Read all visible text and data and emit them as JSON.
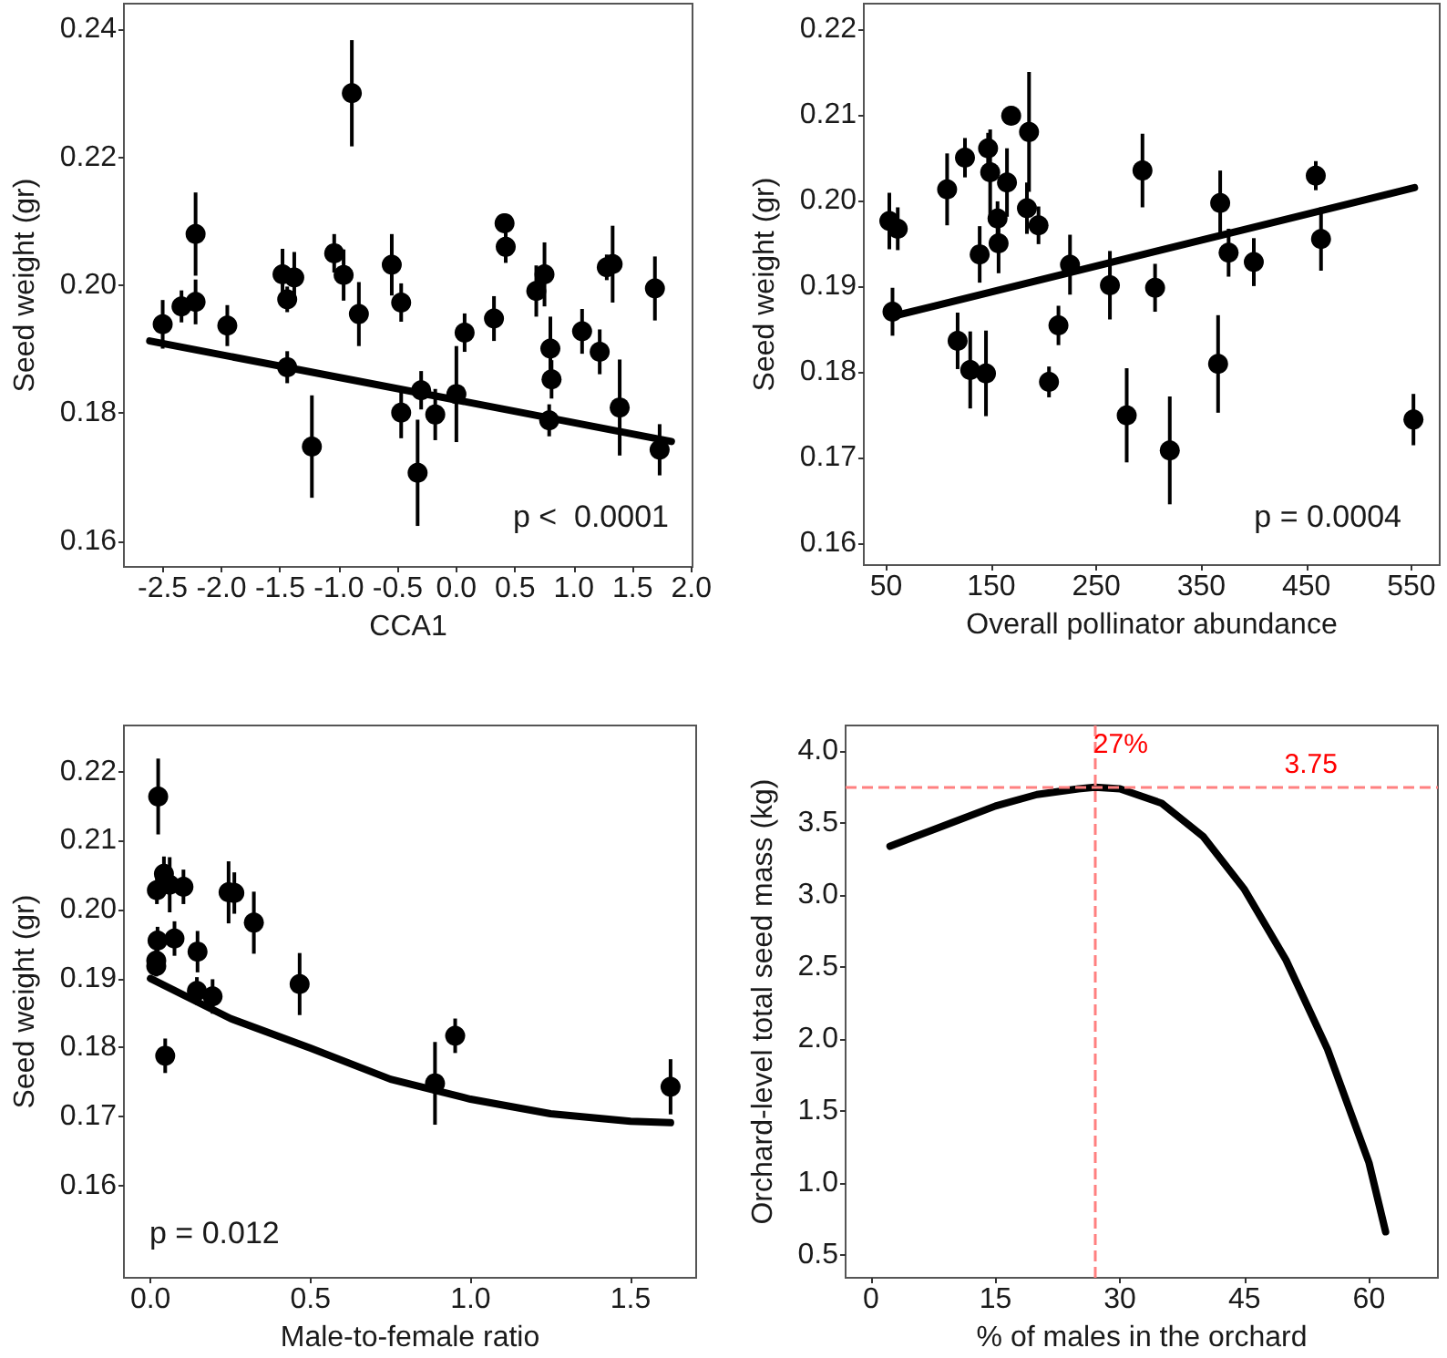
{
  "chart_data": [
    {
      "type": "scatter",
      "xlabel": "CCA1",
      "ylabel": "Seed weight (gr)",
      "xlim": [
        -2.83,
        2.01
      ],
      "ylim": [
        0.156,
        0.244
      ],
      "marker": "circle",
      "grid": false,
      "xticks": [
        -2.5,
        {
          "value": -2,
          "label": "-2.0"
        },
        -1.5,
        {
          "value": -1,
          "label": "-1.0"
        },
        -0.5,
        {
          "value": 0,
          "label": "0.0"
        },
        0.5,
        {
          "value": 1,
          "label": "1.0"
        },
        1.5,
        {
          "value": 2,
          "label": "2.0"
        }
      ],
      "yticks": [
        0.16,
        0.18,
        {
          "value": 0.2,
          "label": "0.20"
        },
        0.22,
        0.24
      ],
      "annotations": [
        "p <  0.0001"
      ],
      "series": [
        {
          "color": "#000000",
          "x": [
            -2.5,
            -2.34,
            -2.22,
            -2.22,
            -1.95,
            -1.48,
            -1.44,
            -1.38,
            -1.44,
            -1.23,
            -1.04,
            -0.96,
            -0.89,
            -0.83,
            -0.55,
            -0.47,
            -0.47,
            -0.3,
            -0.33,
            -0.18,
            0.0,
            0.07,
            0.32,
            0.41,
            0.42,
            0.68,
            0.75,
            0.8,
            0.81,
            0.79,
            1.07,
            1.22,
            1.28,
            1.33,
            1.39,
            1.69,
            1.73
          ],
          "values": [
            0.1939,
            0.1967,
            0.208,
            0.1974,
            0.1937,
            0.2017,
            0.1978,
            0.2012,
            0.1872,
            0.1748,
            0.205,
            0.2016,
            0.23,
            0.1955,
            0.2032,
            0.1973,
            0.1801,
            0.1836,
            0.1707,
            0.1798,
            0.183,
            0.1926,
            0.1948,
            0.2097,
            0.206,
            0.1991,
            0.2017,
            0.1901,
            0.1853,
            0.1789,
            0.1928,
            0.1896,
            0.2028,
            0.2033,
            0.1809,
            0.1995,
            0.1743
          ],
          "errors": [
            0.0038,
            0.0025,
            0.0065,
            0.0035,
            0.0032,
            0.004,
            0.002,
            0.004,
            0.0025,
            0.008,
            0.003,
            0.004,
            0.0083,
            0.005,
            0.0048,
            0.003,
            0.004,
            0.003,
            0.0083,
            0.004,
            0.0075,
            0.003,
            0.0035,
            0.0015,
            0.0025,
            0.004,
            0.005,
            0.005,
            0.003,
            0.0025,
            0.0035,
            0.0035,
            0.002,
            0.006,
            0.0075,
            0.005,
            0.004
          ]
        },
        {
          "type": "line",
          "marker": "none",
          "color": "#000000",
          "x": [
            -2.61,
            1.83
          ],
          "values": [
            0.1913,
            0.1756
          ]
        }
      ]
    },
    {
      "type": "scatter",
      "xlabel": "Overall pollinator abundance",
      "ylabel": "Seed weight (gr)",
      "xlim": [
        28.7,
        577
      ],
      "ylim": [
        0.1574,
        0.223
      ],
      "marker": "circle",
      "grid": false,
      "xticks": [
        50,
        150,
        250,
        350,
        450,
        550
      ],
      "yticks": [
        0.16,
        0.17,
        0.18,
        0.19,
        {
          "value": 0.2,
          "label": "0.20"
        },
        0.21,
        0.22
      ],
      "annotations": [
        "p = 0.0004"
      ],
      "series": [
        {
          "color": "#000000",
          "x": [
            53,
            61,
            56,
            108,
            118,
            125,
            130,
            139,
            145,
            147,
            149,
            156,
            157,
            165,
            169,
            184,
            186,
            195,
            205,
            214,
            225,
            263,
            279,
            294,
            306,
            320,
            366,
            368,
            376,
            400,
            459,
            464,
            552
          ],
          "values": [
            0.1976,
            0.1967,
            0.187,
            0.2013,
            0.1836,
            0.205,
            0.1802,
            0.1937,
            0.1798,
            0.2061,
            0.2033,
            0.1979,
            0.195,
            0.2021,
            0.2099,
            0.1991,
            0.208,
            0.1971,
            0.1788,
            0.1854,
            0.1925,
            0.1901,
            0.1749,
            0.2035,
            0.1898,
            0.1708,
            0.1809,
            0.1997,
            0.1939,
            0.1928,
            0.2029,
            0.1955,
            0.1744
          ],
          "errors": [
            0.0033,
            0.0025,
            0.0028,
            0.0042,
            0.0033,
            0.0023,
            0.0045,
            0.0033,
            0.005,
            0.0018,
            0.005,
            0.002,
            0.0035,
            0.004,
            0.0008,
            0.003,
            0.007,
            0.0022,
            0.0018,
            0.0023,
            0.0035,
            0.004,
            0.0055,
            0.0043,
            0.0028,
            0.0063,
            0.0057,
            0.0038,
            0.0028,
            0.0028,
            0.0017,
            0.0037,
            0.003
          ]
        },
        {
          "type": "line",
          "marker": "none",
          "color": "#000000",
          "x": [
            57,
            553
          ],
          "values": [
            0.1865,
            0.2015
          ]
        }
      ]
    },
    {
      "type": "scatter",
      "xlabel": "Male-to-female ratio",
      "ylabel": "Seed weight (gr)",
      "xlim": [
        -0.083,
        1.705
      ],
      "ylim": [
        0.1466,
        0.2267
      ],
      "marker": "circle",
      "grid": false,
      "xticks": [
        {
          "value": 0,
          "label": "0.0"
        },
        0.5,
        {
          "value": 1,
          "label": "1.0"
        },
        1.5
      ],
      "yticks": [
        0.16,
        0.17,
        0.18,
        0.19,
        {
          "value": 0.2,
          "label": "0.20"
        },
        0.21,
        0.22
      ],
      "annotations": [
        "p = 0.012"
      ],
      "series": [
        {
          "color": "#000000",
          "x": [
            0.024,
            0.02,
            0.042,
            0.06,
            0.022,
            0.018,
            0.018,
            0.046,
            0.075,
            0.103,
            0.147,
            0.145,
            0.194,
            0.244,
            0.262,
            0.323,
            0.466,
            0.889,
            0.952,
            1.625
          ],
          "values": [
            0.2164,
            0.2028,
            0.2052,
            0.2036,
            0.1955,
            0.1926,
            0.1918,
            0.1788,
            0.1958,
            0.2033,
            0.1939,
            0.1882,
            0.1874,
            0.2025,
            0.2024,
            0.1981,
            0.1892,
            0.1748,
            0.1817,
            0.1743
          ],
          "errors": [
            0.0055,
            0.002,
            0.0025,
            0.004,
            0.002,
            0.002,
            0.0015,
            0.0025,
            0.0025,
            0.0025,
            0.003,
            0.002,
            0.0025,
            0.0045,
            0.003,
            0.0045,
            0.0045,
            0.006,
            0.0025,
            0.004
          ]
        },
        {
          "type": "line",
          "marker": "none",
          "color": "#000000",
          "x": [
            0,
            0.25,
            0.5,
            0.75,
            1.0,
            1.25,
            1.5,
            1.625
          ],
          "values": [
            0.19,
            0.1842,
            0.1799,
            0.1754,
            0.1725,
            0.1704,
            0.1693,
            0.1691
          ]
        }
      ]
    },
    {
      "type": "line",
      "xlabel": "% of males in the orchard",
      "ylabel": "Orchard-level total seed mass (kg)",
      "xlim": [
        -3.05,
        68.3
      ],
      "ylim": [
        0.34,
        4.18
      ],
      "marker": "none",
      "grid": false,
      "xticks": [
        0,
        15,
        30,
        45,
        60
      ],
      "yticks": [
        0.5,
        {
          "value": 1,
          "label": "1.0"
        },
        1.5,
        {
          "value": 2,
          "label": "2.0"
        },
        2.5,
        {
          "value": 3,
          "label": "3.0"
        },
        3.5,
        {
          "value": 4,
          "label": "4.0"
        }
      ],
      "ref_lines": [
        {
          "axis": "x",
          "value": 27,
          "label": "27%",
          "color": "#ff8080",
          "line_style": "dashed"
        },
        {
          "axis": "y",
          "value": 3.75,
          "label": "3.75",
          "color": "#ff8080",
          "line_style": "dashed"
        }
      ],
      "series": [
        {
          "color": "#000000",
          "x": [
            2.3,
            5,
            10,
            15,
            20,
            25,
            27,
            30,
            35,
            40,
            45,
            50,
            55,
            60,
            62
          ],
          "values": [
            3.34,
            3.4,
            3.51,
            3.62,
            3.7,
            3.74,
            3.75,
            3.74,
            3.64,
            3.41,
            3.04,
            2.55,
            1.93,
            1.14,
            0.66
          ]
        }
      ]
    }
  ]
}
